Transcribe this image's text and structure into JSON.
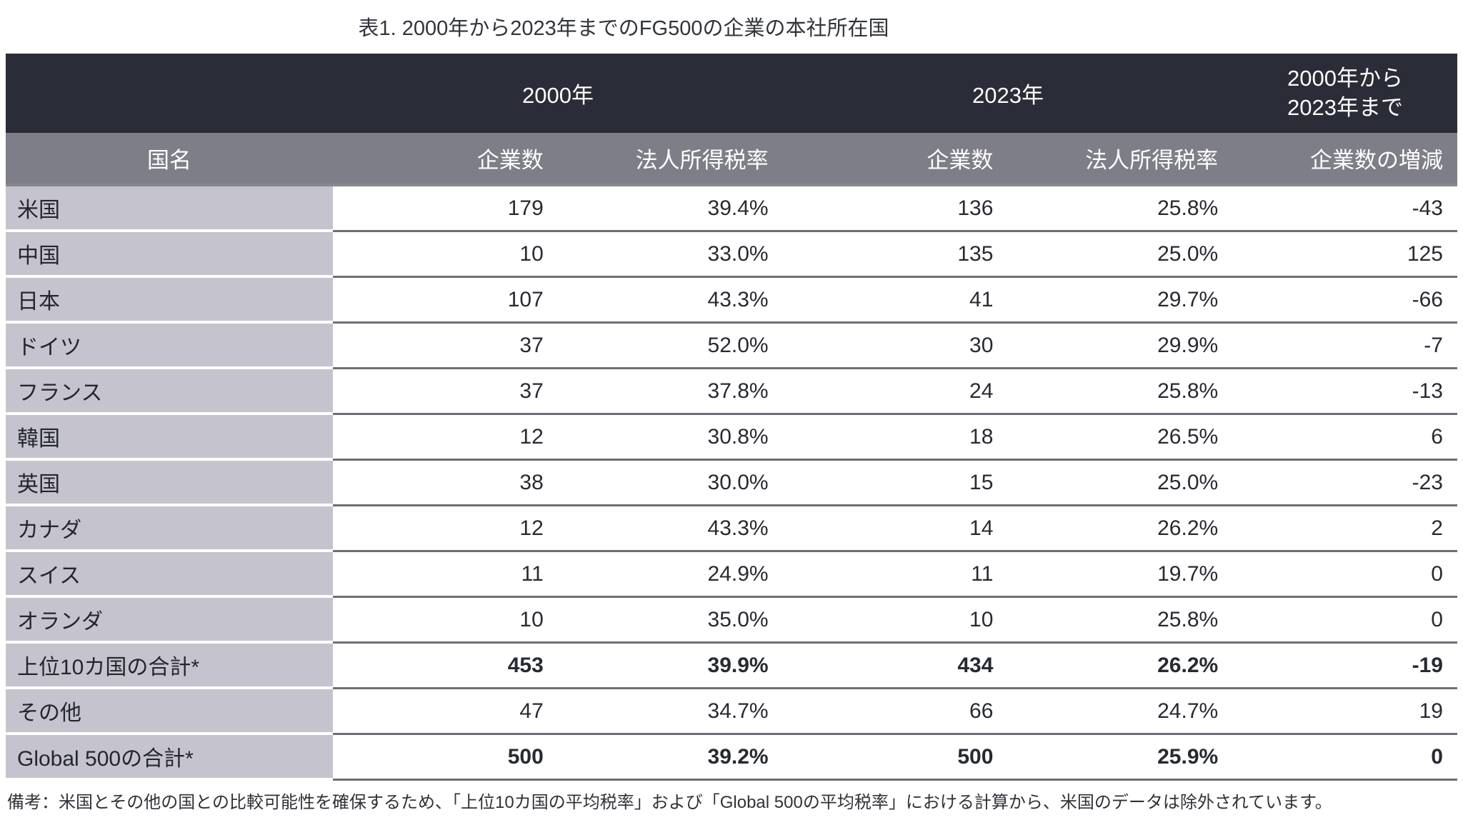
{
  "chart_data": {
    "type": "table",
    "title": "表1. 2000年から2023年までのFG500の企業の本社所在国",
    "year_headers": {
      "y2000": "2000年",
      "y2023": "2023年",
      "range_line1": "2000年から",
      "range_line2": "2023年まで"
    },
    "columns": [
      "国名",
      "企業数",
      "法人所得税率",
      "企業数",
      "法人所得税率",
      "企業数の増減"
    ],
    "rows": [
      {
        "country": "米国",
        "values": [
          "179",
          "39.4%",
          "136",
          "25.8%",
          "-43"
        ],
        "bold": false
      },
      {
        "country": "中国",
        "values": [
          "10",
          "33.0%",
          "135",
          "25.0%",
          "125"
        ],
        "bold": false
      },
      {
        "country": "日本",
        "values": [
          "107",
          "43.3%",
          "41",
          "29.7%",
          "-66"
        ],
        "bold": false
      },
      {
        "country": "ドイツ",
        "values": [
          "37",
          "52.0%",
          "30",
          "29.9%",
          "-7"
        ],
        "bold": false
      },
      {
        "country": "フランス",
        "values": [
          "37",
          "37.8%",
          "24",
          "25.8%",
          "-13"
        ],
        "bold": false
      },
      {
        "country": "韓国",
        "values": [
          "12",
          "30.8%",
          "18",
          "26.5%",
          "6"
        ],
        "bold": false
      },
      {
        "country": "英国",
        "values": [
          "38",
          "30.0%",
          "15",
          "25.0%",
          "-23"
        ],
        "bold": false
      },
      {
        "country": "カナダ",
        "values": [
          "12",
          "43.3%",
          "14",
          "26.2%",
          "2"
        ],
        "bold": false
      },
      {
        "country": "スイス",
        "values": [
          "11",
          "24.9%",
          "11",
          "19.7%",
          "0"
        ],
        "bold": false
      },
      {
        "country": "オランダ",
        "values": [
          "10",
          "35.0%",
          "10",
          "25.8%",
          "0"
        ],
        "bold": false
      },
      {
        "country": "上位10カ国の合計*",
        "values": [
          "453",
          "39.9%",
          "434",
          "26.2%",
          "-19"
        ],
        "bold": true
      },
      {
        "country": "その他",
        "values": [
          "47",
          "34.7%",
          "66",
          "24.7%",
          "19"
        ],
        "bold": false
      },
      {
        "country": "Global 500の合計*",
        "values": [
          "500",
          "39.2%",
          "500",
          "25.9%",
          "0"
        ],
        "bold": true
      }
    ],
    "note": "備考：米国とその他の国との比較可能性を確保するため、「上位10カ国の平均税率」および「Global 500の平均税率」における計算から、米国のデータは除外されています。"
  },
  "colors": {
    "header_dark": "#2a2c37",
    "header_gray": "#7e7e88",
    "country_cell": "#c5c4ce",
    "row_line": "#6e6e78",
    "header_text": "#ffffff",
    "body_text": "#272a31"
  }
}
